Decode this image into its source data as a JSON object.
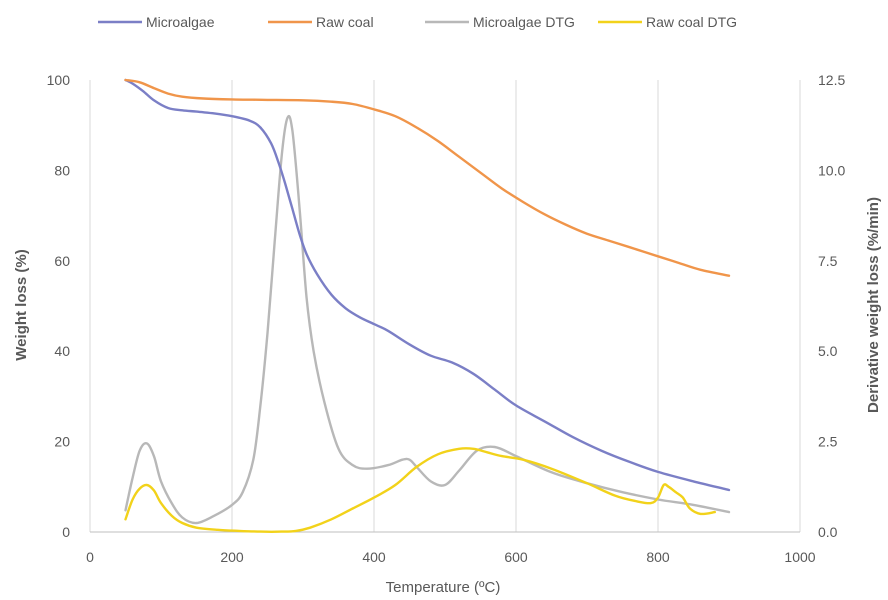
{
  "chart_data": {
    "type": "line",
    "title": "",
    "xlabel": "Temperature (ºC)",
    "ylabel": "Weight loss (%)",
    "y2label": "Derivative weight loss (%/min)",
    "xlim": [
      0,
      1000
    ],
    "ylim": [
      0,
      100
    ],
    "y2lim": [
      0,
      12.5
    ],
    "xticks": [
      "0",
      "200",
      "400",
      "600",
      "800",
      "1000"
    ],
    "yticks": [
      "0",
      "20",
      "40",
      "60",
      "80",
      "100"
    ],
    "y2ticks": [
      "0.0",
      "2.5",
      "5.0",
      "7.5",
      "10.0",
      "12.5"
    ],
    "grid": "vertical",
    "legend_position": "top",
    "series": [
      {
        "name": "Microalgae",
        "color": "#7b7fc6",
        "axis": "left",
        "x": [
          50,
          60,
          75,
          90,
          110,
          130,
          150,
          175,
          200,
          225,
          240,
          255,
          265,
          275,
          285,
          295,
          305,
          320,
          340,
          360,
          380,
          400,
          420,
          450,
          480,
          510,
          540,
          570,
          600,
          640,
          680,
          720,
          760,
          800,
          850,
          900
        ],
        "y": [
          100,
          99.2,
          97.5,
          95.5,
          93.8,
          93.3,
          93.0,
          92.6,
          92.0,
          91.0,
          89.5,
          86.0,
          82.0,
          77.0,
          71.5,
          66.0,
          61.5,
          57.0,
          52.5,
          49.5,
          47.5,
          46.0,
          44.5,
          41.5,
          39.0,
          37.5,
          35.0,
          31.5,
          28.0,
          24.5,
          21.0,
          18.0,
          15.5,
          13.3,
          11.2,
          9.3
        ]
      },
      {
        "name": "Raw coal",
        "color": "#f0954a",
        "axis": "left",
        "x": [
          50,
          70,
          90,
          110,
          130,
          160,
          200,
          250,
          300,
          340,
          370,
          400,
          430,
          460,
          490,
          520,
          550,
          580,
          610,
          640,
          670,
          700,
          730,
          760,
          800,
          830,
          860,
          900
        ],
        "y": [
          100,
          99.5,
          98.2,
          97.0,
          96.3,
          95.9,
          95.7,
          95.6,
          95.5,
          95.2,
          94.7,
          93.5,
          92.0,
          89.5,
          86.5,
          83.0,
          79.5,
          76.0,
          73.0,
          70.3,
          68.0,
          66.0,
          64.5,
          63.0,
          61.0,
          59.5,
          58.0,
          56.7
        ]
      },
      {
        "name": "Microalgae DTG",
        "color": "#b8b8b8",
        "axis": "right",
        "x": [
          50,
          60,
          70,
          80,
          90,
          100,
          115,
          130,
          150,
          175,
          200,
          215,
          230,
          240,
          250,
          260,
          270,
          278,
          285,
          295,
          305,
          315,
          330,
          350,
          370,
          390,
          420,
          440,
          450,
          460,
          480,
          500,
          520,
          545,
          570,
          600,
          650,
          700,
          750,
          800,
          850,
          900
        ],
        "y": [
          0.6,
          1.5,
          2.25,
          2.45,
          2.1,
          1.4,
          0.8,
          0.4,
          0.25,
          0.45,
          0.75,
          1.1,
          2.0,
          3.5,
          5.5,
          8.0,
          10.4,
          11.45,
          11.1,
          9.0,
          6.5,
          5.0,
          3.6,
          2.3,
          1.85,
          1.75,
          1.85,
          2.0,
          2.0,
          1.8,
          1.4,
          1.3,
          1.7,
          2.25,
          2.35,
          2.1,
          1.65,
          1.35,
          1.1,
          0.9,
          0.75,
          0.55
        ]
      },
      {
        "name": "Raw coal DTG",
        "color": "#f2d21a",
        "axis": "right",
        "x": [
          50,
          60,
          70,
          80,
          90,
          100,
          115,
          130,
          150,
          180,
          210,
          240,
          270,
          290,
          310,
          340,
          370,
          400,
          430,
          460,
          490,
          520,
          540,
          560,
          580,
          610,
          650,
          700,
          740,
          770,
          790,
          800,
          808,
          815,
          825,
          835,
          845,
          860,
          880
        ],
        "y": [
          0.35,
          0.9,
          1.2,
          1.3,
          1.15,
          0.8,
          0.45,
          0.25,
          0.12,
          0.06,
          0.03,
          0.01,
          0.01,
          0.03,
          0.12,
          0.35,
          0.65,
          0.95,
          1.3,
          1.8,
          2.15,
          2.3,
          2.3,
          2.2,
          2.1,
          2.0,
          1.75,
          1.35,
          1.0,
          0.85,
          0.8,
          0.95,
          1.3,
          1.25,
          1.1,
          0.95,
          0.65,
          0.5,
          0.55
        ]
      }
    ]
  }
}
